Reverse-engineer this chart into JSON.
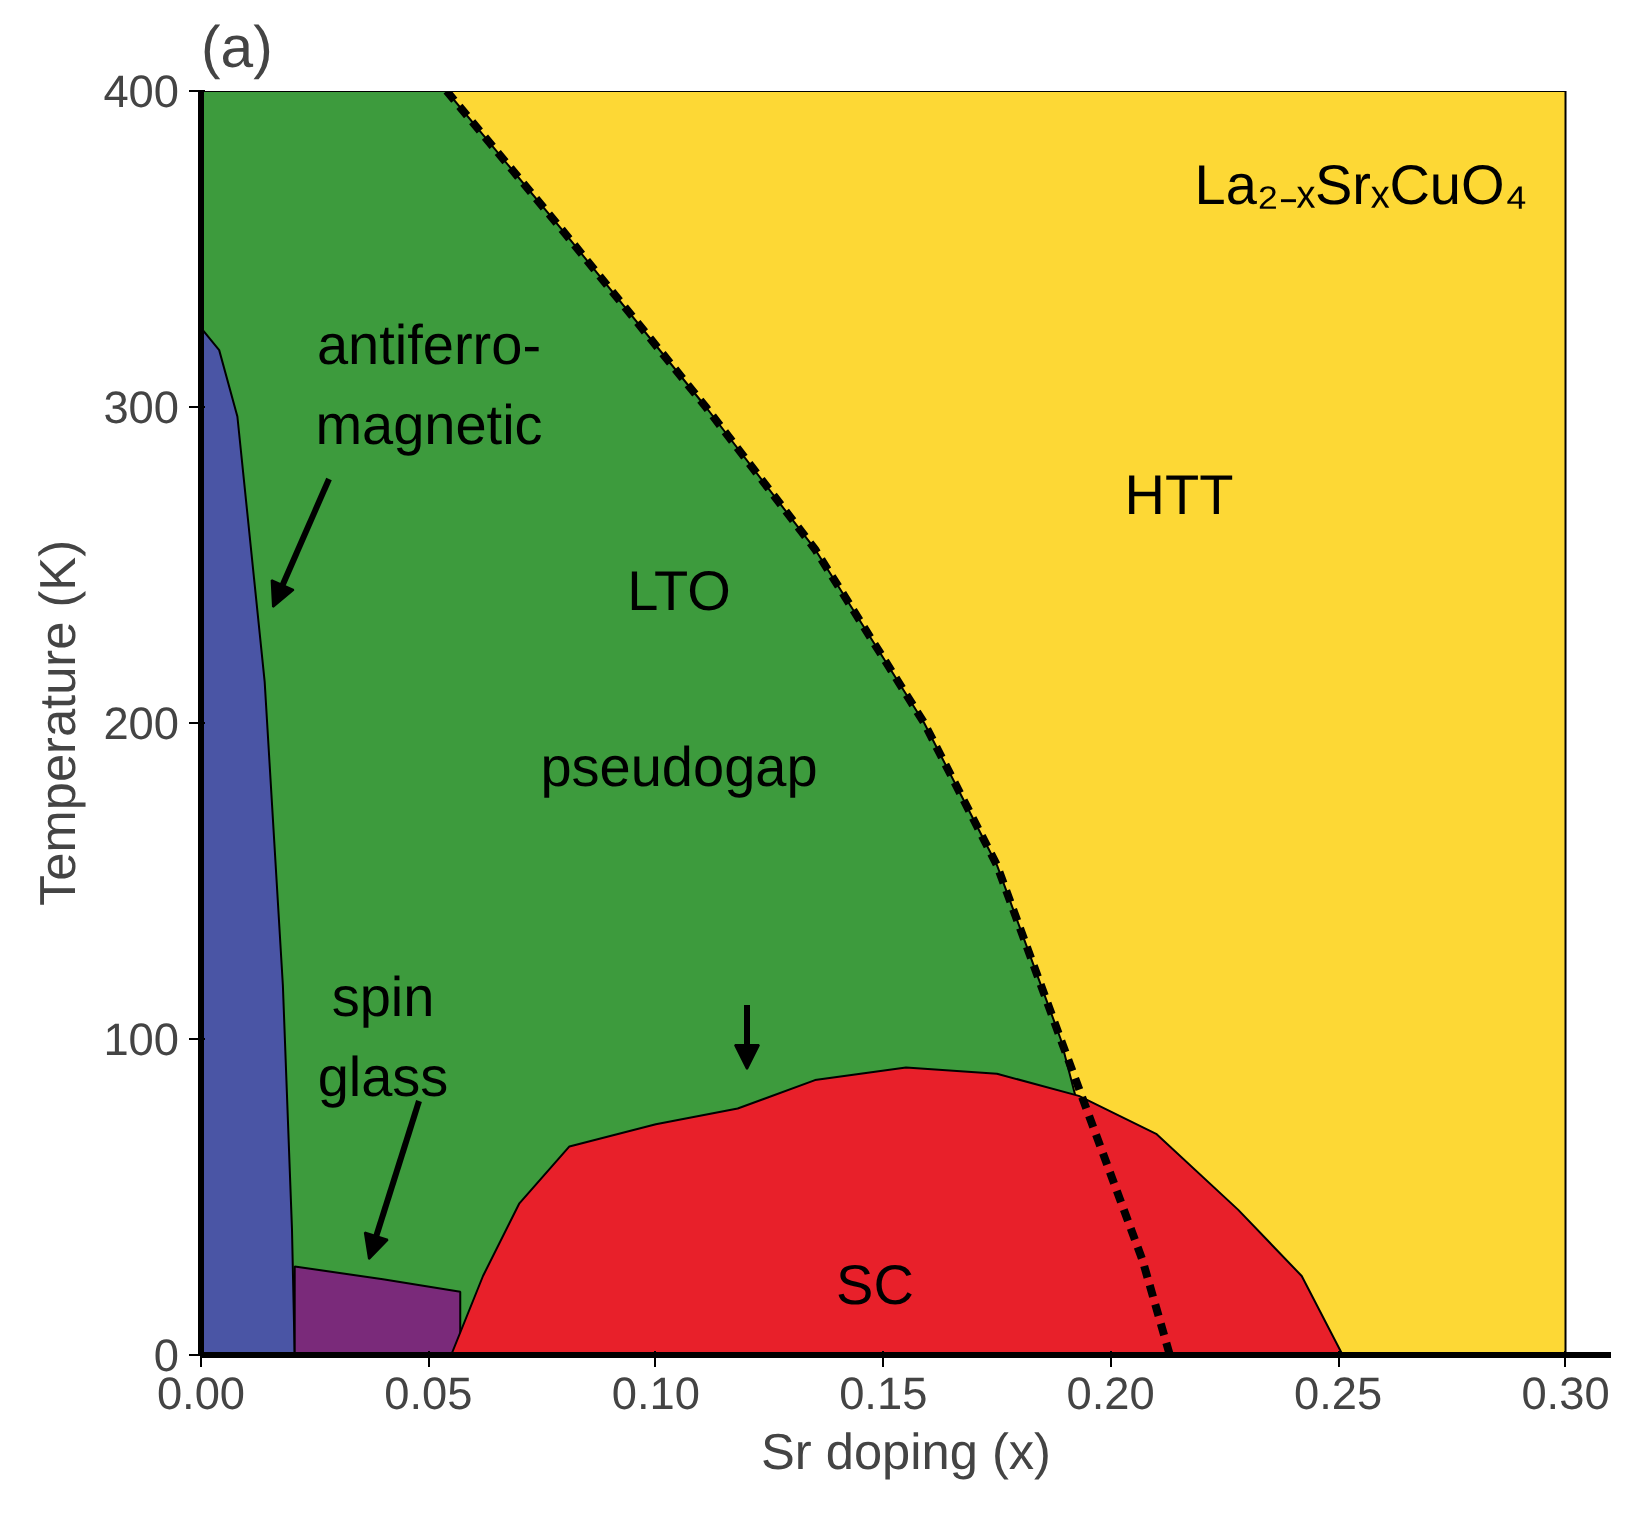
{
  "chart_data": {
    "type": "area",
    "title": "(a)",
    "xlabel": "Sr doping (x)",
    "ylabel": "Temperature (K)",
    "xlim": [
      0,
      0.31
    ],
    "ylim": [
      0,
      400
    ],
    "xticks": [
      {
        "value": 0,
        "label": "0.00"
      },
      {
        "value": 0.05,
        "label": "0.05"
      },
      {
        "value": 0.1,
        "label": "0.10"
      },
      {
        "value": 0.15,
        "label": "0.15"
      },
      {
        "value": 0.2,
        "label": "0.20"
      },
      {
        "value": 0.25,
        "label": "0.25"
      },
      {
        "value": 0.3,
        "label": "0.30"
      }
    ],
    "yticks": [
      0,
      100,
      200,
      300,
      400
    ],
    "grid": false,
    "series": [
      {
        "color": "#fdd835",
        "x": [
          0.054,
          0.3
        ],
        "values": [
          400,
          400
        ]
      },
      {
        "color": "#3d9b3d",
        "x": [
          0,
          0.054,
          0.08,
          0.111,
          0.135,
          0.159,
          0.175,
          0.189,
          0.207
        ],
        "values": [
          400,
          400,
          355,
          300,
          255,
          200,
          155,
          100,
          0
        ]
      },
      {
        "color": "#4a55a5",
        "x": [
          0,
          0.004,
          0.008,
          0.014,
          0.018,
          0.02,
          0.0206
        ],
        "values": [
          325,
          318,
          297,
          213,
          117,
          40,
          0
        ]
      },
      {
        "color": "#7a2a7a",
        "x": [
          0.0206,
          0.04,
          0.057
        ],
        "values": [
          28,
          24,
          20
        ]
      },
      {
        "color": "#e8202a",
        "x": [
          0.055,
          0.062,
          0.07,
          0.081,
          0.1,
          0.118,
          0.135,
          0.155,
          0.175,
          0.193,
          0.21,
          0.228,
          0.242,
          0.251
        ],
        "values": [
          0,
          25,
          48,
          66,
          73,
          78,
          87,
          91,
          89,
          82,
          70,
          46,
          25,
          0
        ]
      },
      {
        "type": "line",
        "line_style": "dashed",
        "color": "#000000",
        "x": [
          0.054,
          0.08,
          0.111,
          0.135,
          0.159,
          0.175,
          0.189,
          0.207,
          0.213
        ],
        "values": [
          400,
          355,
          300,
          255,
          200,
          155,
          100,
          30,
          0
        ]
      }
    ],
    "annotations": [
      "La₂₋ₓSrₓCuO₄",
      "HTT",
      "LTO",
      "pseudogap",
      "SC",
      "spin\nglass",
      "antiferro-\nmagnetic"
    ]
  }
}
